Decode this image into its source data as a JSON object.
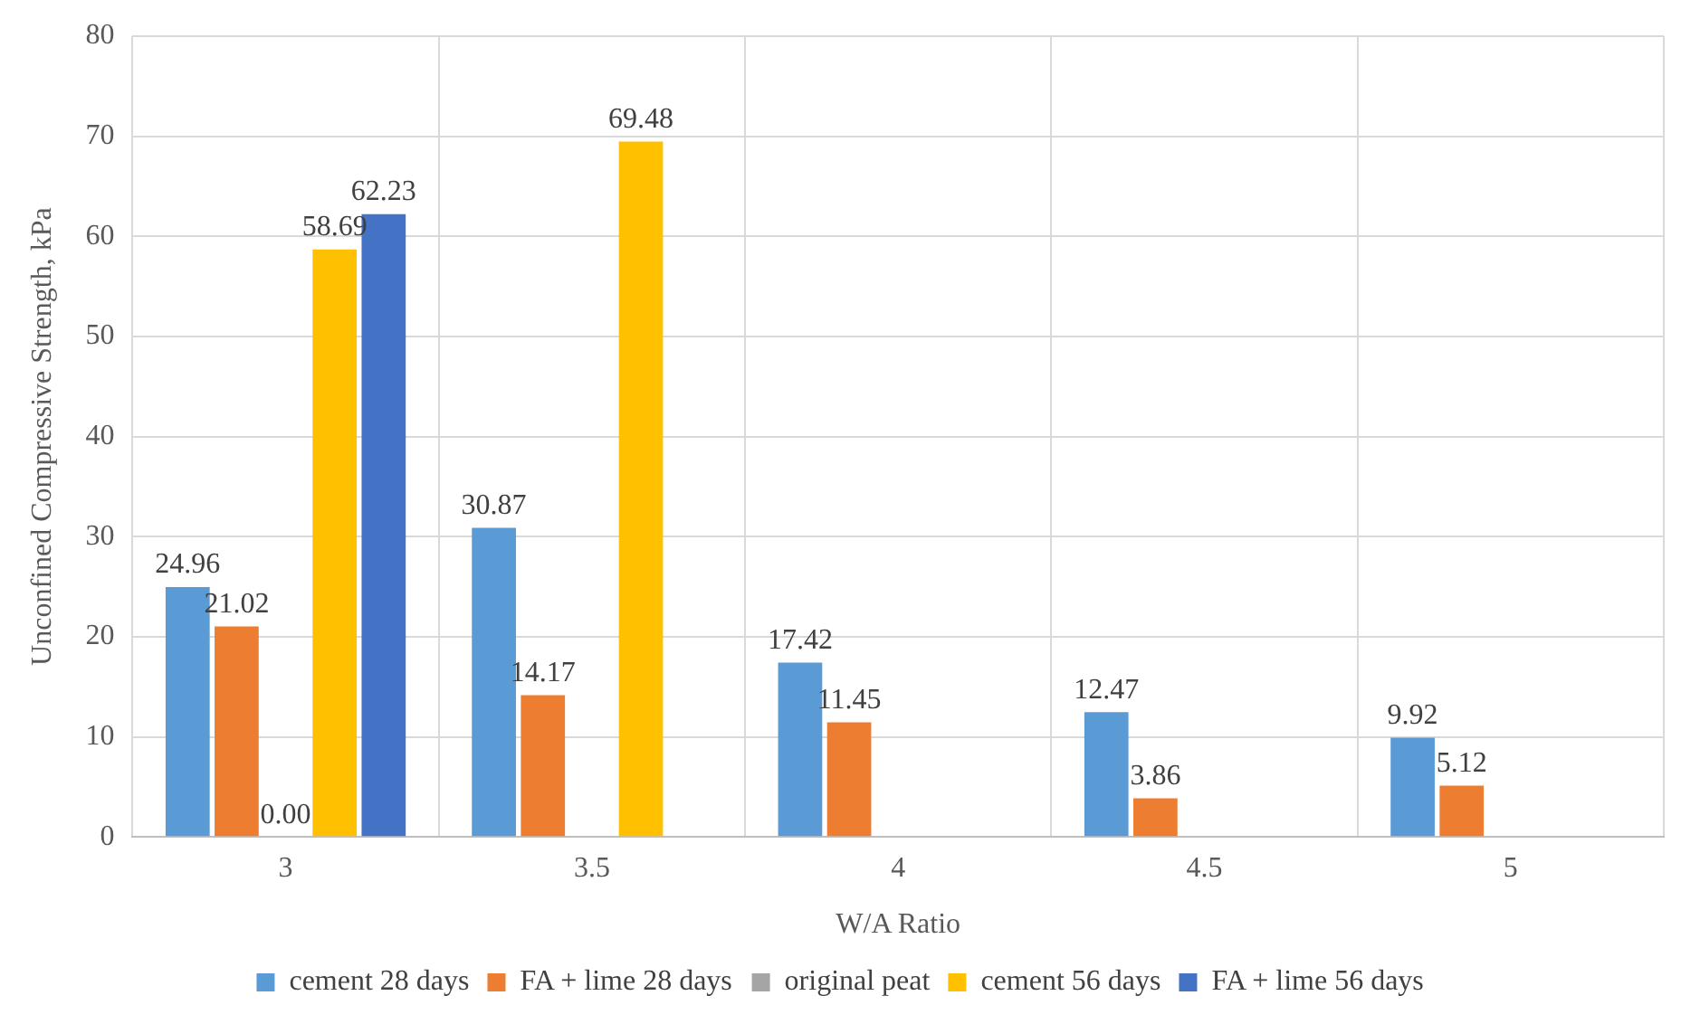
{
  "chart_data": {
    "type": "bar",
    "xlabel": "W/A Ratio",
    "ylabel": "Unconfined Compressive Strength, kPa",
    "categories": [
      "3",
      "3.5",
      "4",
      "4.5",
      "5"
    ],
    "series": [
      {
        "name": "cement 28 days",
        "color": "#5b9bd5",
        "values": [
          24.96,
          30.87,
          17.42,
          12.47,
          9.92
        ],
        "value_labels": [
          "24.96",
          "30.87",
          "17.42",
          "12.47",
          "9.92"
        ]
      },
      {
        "name": "FA + lime 28 days",
        "color": "#ed7d31",
        "values": [
          21.02,
          14.17,
          11.45,
          3.86,
          5.12
        ],
        "value_labels": [
          "21.02",
          "14.17",
          "11.45",
          "3.86",
          "5.12"
        ]
      },
      {
        "name": "original peat",
        "color": "#a5a5a5",
        "values": [
          0.0,
          null,
          null,
          null,
          null
        ],
        "value_labels": [
          "0.00",
          null,
          null,
          null,
          null
        ]
      },
      {
        "name": "cement 56 days",
        "color": "#ffc000",
        "values": [
          58.69,
          69.48,
          null,
          null,
          null
        ],
        "value_labels": [
          "58.69",
          "69.48",
          null,
          null,
          null
        ]
      },
      {
        "name": "FA + lime 56 days",
        "color": "#4472c4",
        "values": [
          62.23,
          null,
          null,
          null,
          null
        ],
        "value_labels": [
          "62.23",
          null,
          null,
          null,
          null
        ]
      }
    ],
    "ylim": [
      0,
      80
    ],
    "yticks": [
      0,
      10,
      20,
      30,
      40,
      50,
      60,
      70,
      80
    ],
    "grid": true,
    "legend": "bottom"
  }
}
